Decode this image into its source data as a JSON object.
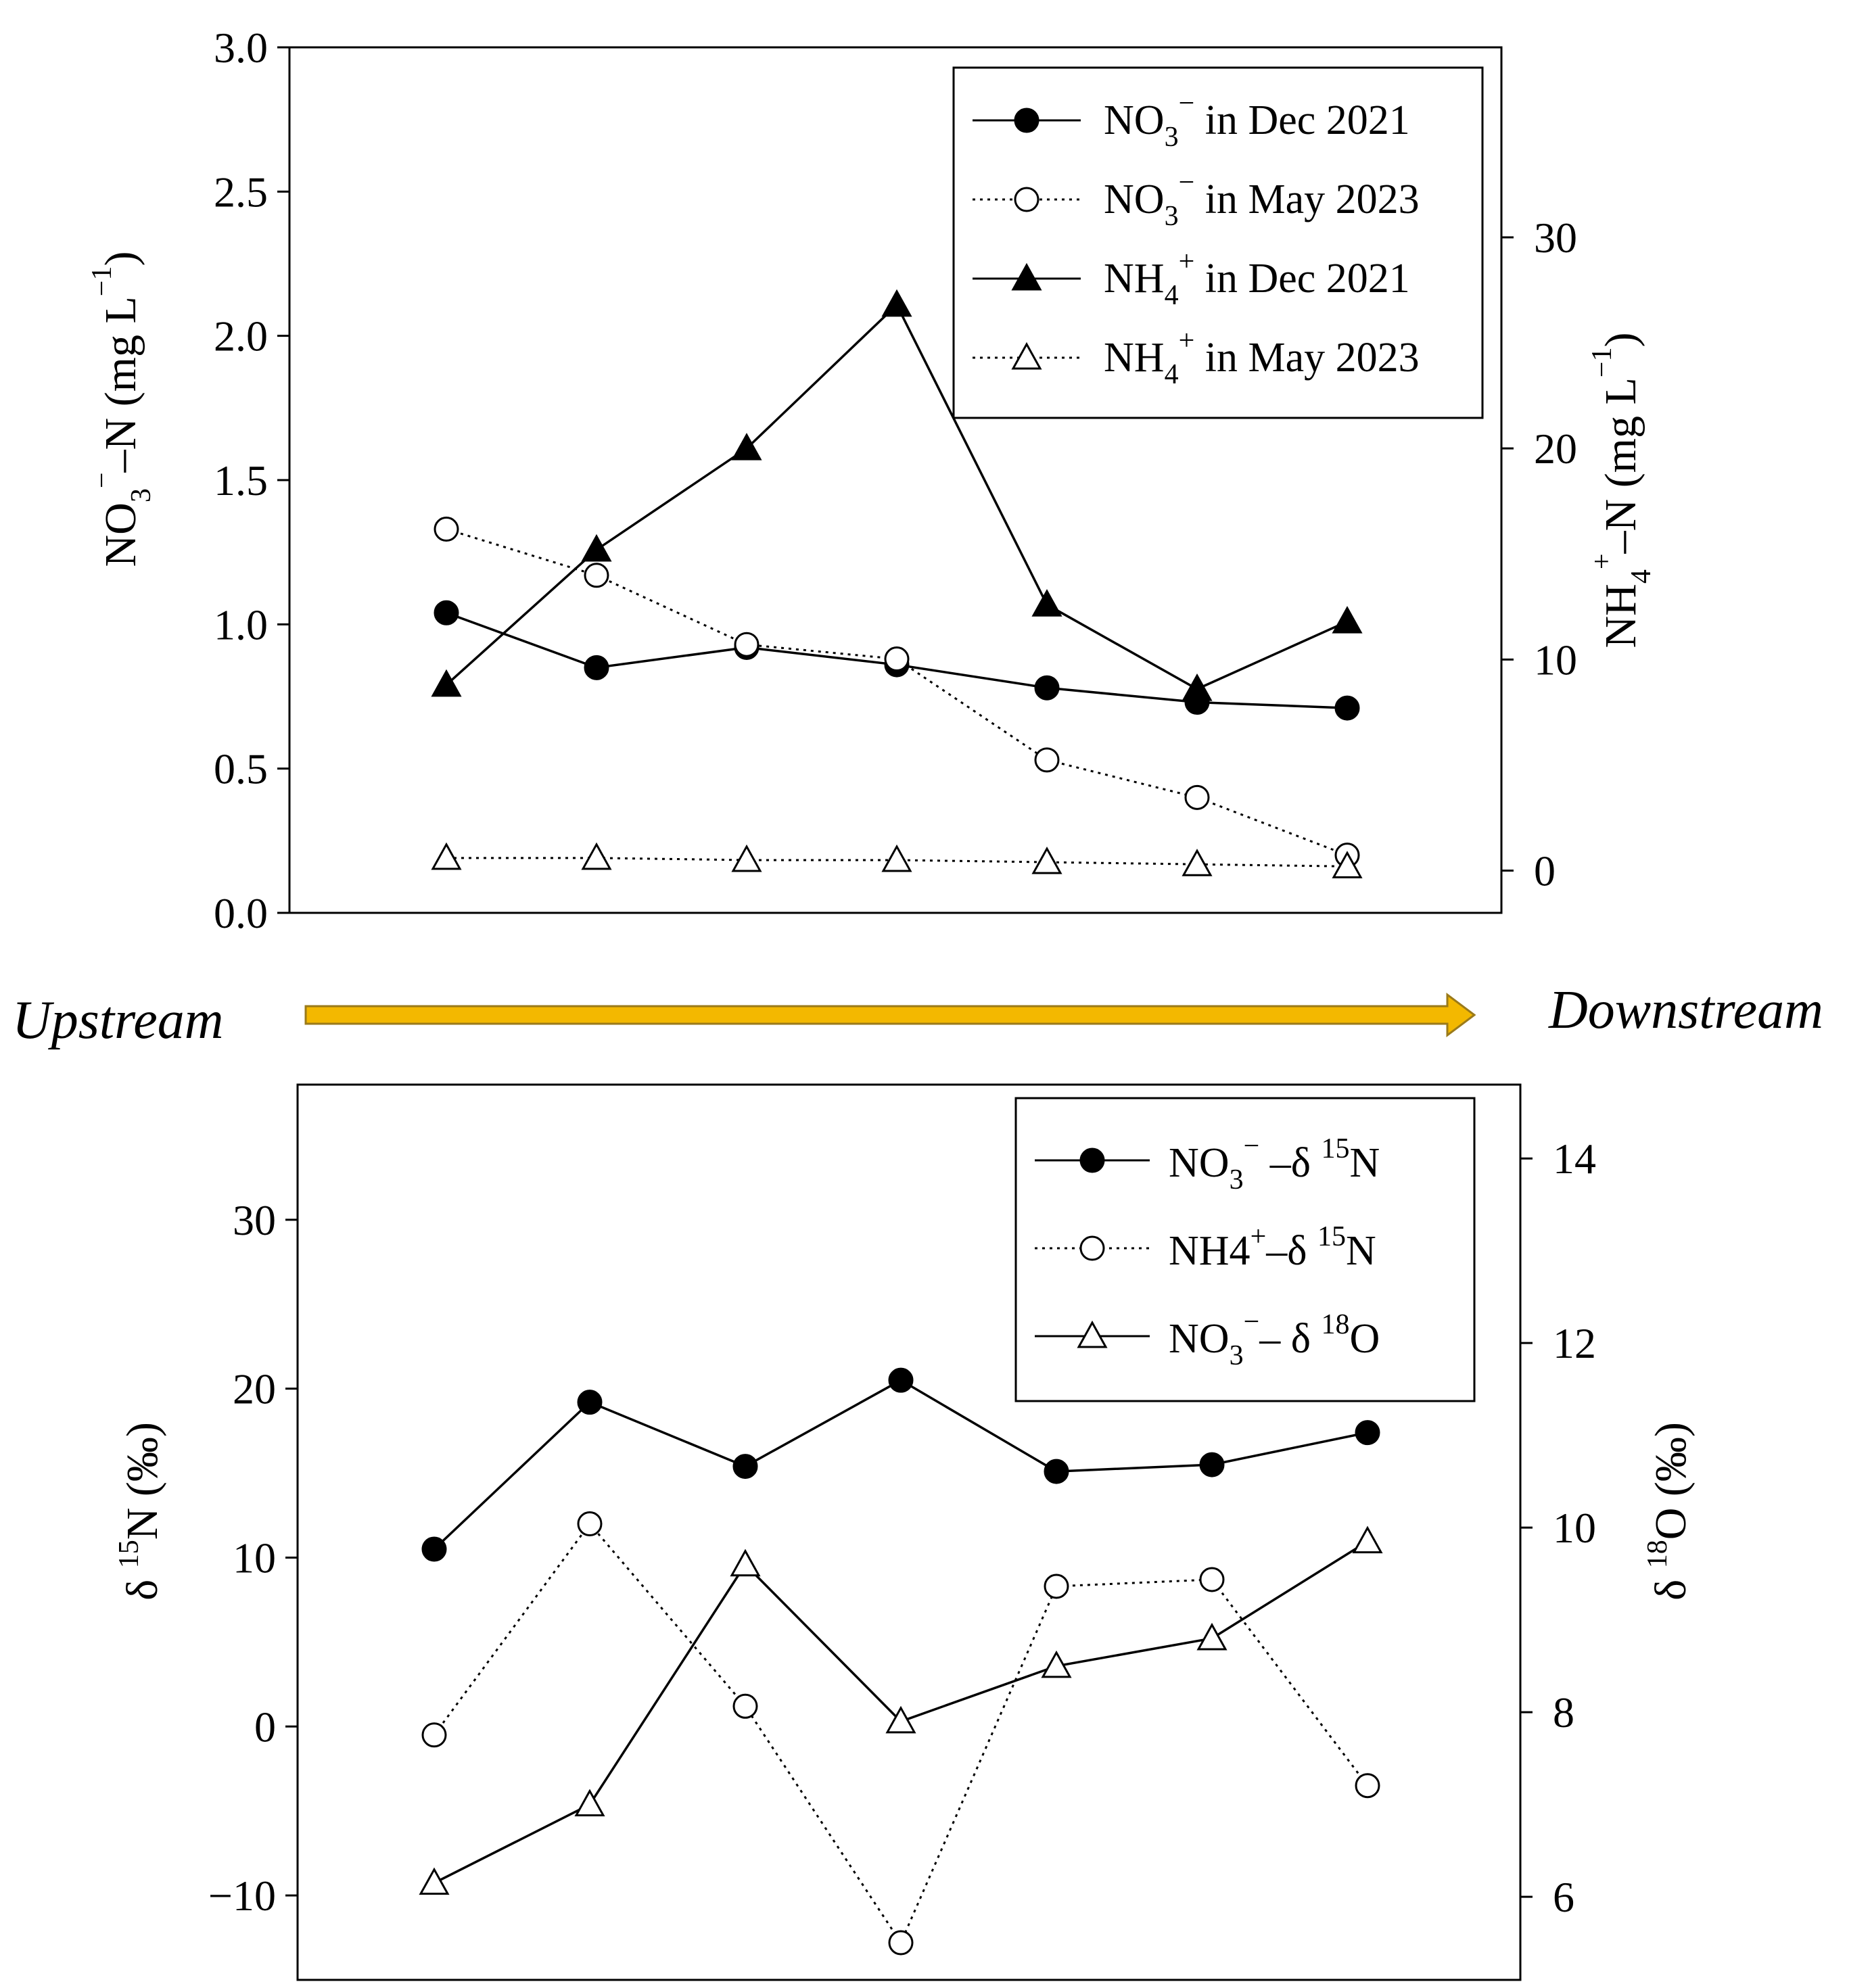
{
  "colors": {
    "ink": "#000000",
    "arrow_fill": "#f3b800",
    "arrow_edge": "#9a7a1a",
    "background": "#ffffff"
  },
  "flow": {
    "left_label": "Upstream",
    "right_label": "Downstream"
  },
  "chart_data": [
    {
      "type": "line",
      "panel": "top",
      "x_count": 7,
      "y_left": {
        "label_parts": {
          "a": "NO",
          "a_sub": "3",
          "a_sup": "−",
          "b": "–N (mg L",
          "b_sup": "−1",
          "c": ")"
        },
        "lim": [
          0,
          3
        ],
        "ticks": [
          0,
          0.5,
          1,
          1.5,
          2,
          2.5,
          3
        ],
        "tick_labels": [
          "0.0",
          "0.5",
          "1.0",
          "1.5",
          "2.0",
          "2.5",
          "3.0"
        ]
      },
      "y_right": {
        "label_parts": {
          "a": "NH",
          "a_sub": "4",
          "a_sup": "+",
          "b": "–N (mg L",
          "b_sup": "−1",
          "c": ")"
        },
        "lim": [
          -2,
          39
        ],
        "ticks": [
          0,
          10,
          20,
          30
        ],
        "tick_labels": [
          "0",
          "10",
          "20",
          "30"
        ]
      },
      "legend": {
        "placement": "top-right"
      },
      "series": [
        {
          "name": "NO3− in Dec 2021",
          "legend_parts": {
            "a": "NO",
            "sub": "3",
            "sup": "−",
            "b": " in Dec 2021"
          },
          "axis": "left",
          "marker": "circle",
          "filled": true,
          "dashed": false,
          "values": [
            1.04,
            0.85,
            0.92,
            0.86,
            0.78,
            0.73,
            0.71
          ]
        },
        {
          "name": "NO3− in May 2023",
          "legend_parts": {
            "a": "NO",
            "sub": "3",
            "sup": "−",
            "b": " in May 2023"
          },
          "axis": "left",
          "marker": "circle",
          "filled": false,
          "dashed": true,
          "values": [
            1.33,
            1.17,
            0.93,
            0.88,
            0.53,
            0.4,
            0.2
          ]
        },
        {
          "name": "NH4+ in Dec 2021",
          "legend_parts": {
            "a": "NH",
            "sub": "4",
            "sup": "+",
            "b": " in Dec 2021"
          },
          "axis": "right",
          "marker": "triangle",
          "filled": true,
          "dashed": false,
          "values": [
            8.8,
            15.2,
            20.0,
            26.8,
            12.6,
            8.6,
            11.8
          ]
        },
        {
          "name": "NH4+ in May 2023",
          "legend_parts": {
            "a": "NH",
            "sub": "4",
            "sup": "+",
            "b": " in May 2023"
          },
          "axis": "right",
          "marker": "triangle",
          "filled": false,
          "dashed": true,
          "values": [
            0.6,
            0.6,
            0.5,
            0.5,
            0.4,
            0.3,
            0.2
          ]
        }
      ]
    },
    {
      "type": "line",
      "panel": "bottom",
      "x_count": 7,
      "y_left": {
        "label_parts": {
          "a": "δ ",
          "sup": "15",
          "b": "N (‰)"
        },
        "lim": [
          -15,
          38
        ],
        "ticks": [
          -10,
          0,
          10,
          20,
          30
        ],
        "tick_labels": [
          "−10",
          "0",
          "10",
          "20",
          "30"
        ]
      },
      "y_right": {
        "label_parts": {
          "a": "δ ",
          "sup": "18",
          "b": "O (‰)"
        },
        "lim": [
          5.1,
          14.8
        ],
        "ticks": [
          6,
          8,
          10,
          12,
          14
        ],
        "tick_labels": [
          "6",
          "8",
          "10",
          "12",
          "14"
        ]
      },
      "legend": {
        "placement": "top-right"
      },
      "series": [
        {
          "name": "NO3− –δ 15N",
          "legend_parts": {
            "a": "NO",
            "sub": "3",
            "sup": "−",
            "b": " –δ ",
            "sup2": "15",
            "c": "N"
          },
          "axis": "left",
          "marker": "circle",
          "filled": true,
          "dashed": false,
          "values": [
            10.5,
            19.2,
            15.4,
            20.5,
            15.1,
            15.5,
            17.4
          ]
        },
        {
          "name": "NH4+–δ 15N",
          "legend_parts": {
            "a": "NH4",
            "sup": "+",
            "b": "–δ ",
            "sup2": "15",
            "c": "N"
          },
          "axis": "left",
          "marker": "circle",
          "filled": false,
          "dashed": true,
          "values": [
            -0.5,
            12.0,
            1.2,
            -12.8,
            8.3,
            8.7,
            -3.5
          ]
        },
        {
          "name": "NO3−– δ 18O",
          "legend_parts": {
            "a": "NO",
            "sub": "3",
            "sup": "−",
            "b": "– δ ",
            "sup2": "18",
            "c": "O"
          },
          "axis": "right",
          "marker": "triangle",
          "filled": false,
          "dashed": false,
          "values": [
            6.15,
            7.0,
            9.6,
            7.9,
            8.5,
            8.8,
            9.85
          ]
        }
      ]
    }
  ]
}
